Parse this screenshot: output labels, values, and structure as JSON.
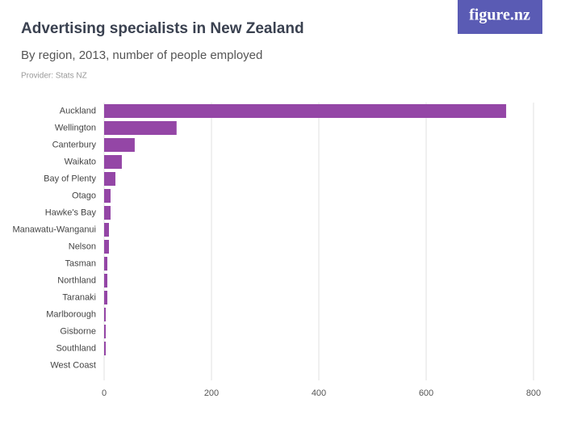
{
  "logo": "figure.nz",
  "chart_data": {
    "type": "bar",
    "orientation": "horizontal",
    "title": "Advertising specialists in New Zealand",
    "subtitle": "By region, 2013, number of people employed",
    "source": "Provider: Stats NZ",
    "categories": [
      "Auckland",
      "Wellington",
      "Canterbury",
      "Waikato",
      "Bay of Plenty",
      "Otago",
      "Hawke's Bay",
      "Manawatu-Wanganui",
      "Nelson",
      "Tasman",
      "Northland",
      "Taranaki",
      "Marlborough",
      "Gisborne",
      "Southland",
      "West Coast"
    ],
    "values": [
      749,
      135,
      57,
      33,
      21,
      12,
      12,
      9,
      9,
      6,
      6,
      6,
      3,
      3,
      3,
      0
    ],
    "color": "#9446a6",
    "xlim": [
      0,
      800
    ],
    "xticks": [
      0,
      200,
      400,
      600,
      800
    ],
    "grid": true
  }
}
